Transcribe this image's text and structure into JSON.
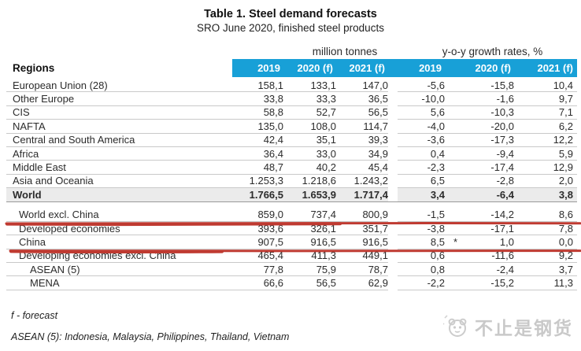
{
  "title": "Table 1. Steel demand forecasts",
  "subtitle": "SRO June 2020, finished steel products",
  "table": {
    "regions_header": "Regions",
    "group_headers": {
      "tonnes": "million tonnes",
      "growth": "y-o-y growth rates, %"
    },
    "year_headers": [
      "2019",
      "2020 (f)",
      "2021 (f)",
      "2019",
      "2020 (f)",
      "2021 (f)"
    ],
    "rows": [
      {
        "region": "European Union (28)",
        "indent": 0,
        "bold": false,
        "star": false,
        "underline": false,
        "break_after": false,
        "tonnes": [
          "158,1",
          "133,1",
          "147,0"
        ],
        "growth": [
          "-5,6",
          "-15,8",
          "10,4"
        ]
      },
      {
        "region": "Other Europe",
        "indent": 0,
        "bold": false,
        "star": false,
        "underline": false,
        "break_after": false,
        "tonnes": [
          "33,8",
          "33,3",
          "36,5"
        ],
        "growth": [
          "-10,0",
          "-1,6",
          "9,7"
        ]
      },
      {
        "region": "CIS",
        "indent": 0,
        "bold": false,
        "star": false,
        "underline": false,
        "break_after": false,
        "tonnes": [
          "58,8",
          "52,7",
          "56,5"
        ],
        "growth": [
          "5,6",
          "-10,3",
          "7,1"
        ]
      },
      {
        "region": "NAFTA",
        "indent": 0,
        "bold": false,
        "star": false,
        "underline": false,
        "break_after": false,
        "tonnes": [
          "135,0",
          "108,0",
          "114,7"
        ],
        "growth": [
          "-4,0",
          "-20,0",
          "6,2"
        ]
      },
      {
        "region": "Central and South America",
        "indent": 0,
        "bold": false,
        "star": false,
        "underline": false,
        "break_after": false,
        "tonnes": [
          "42,4",
          "35,1",
          "39,3"
        ],
        "growth": [
          "-3,6",
          "-17,3",
          "12,2"
        ]
      },
      {
        "region": "Africa",
        "indent": 0,
        "bold": false,
        "star": false,
        "underline": false,
        "break_after": false,
        "tonnes": [
          "36,4",
          "33,0",
          "34,9"
        ],
        "growth": [
          "0,4",
          "-9,4",
          "5,9"
        ]
      },
      {
        "region": "Middle East",
        "indent": 0,
        "bold": false,
        "star": false,
        "underline": false,
        "break_after": false,
        "tonnes": [
          "48,7",
          "40,2",
          "45,4"
        ],
        "growth": [
          "-2,3",
          "-17,4",
          "12,9"
        ]
      },
      {
        "region": "Asia and Oceania",
        "indent": 0,
        "bold": false,
        "star": false,
        "underline": false,
        "break_after": false,
        "tonnes": [
          "1.253,3",
          "1.218,6",
          "1.243,2"
        ],
        "growth": [
          "6,5",
          "-2,8",
          "2,0"
        ]
      },
      {
        "region": "World",
        "indent": 0,
        "bold": true,
        "star": true,
        "underline": false,
        "break_after": true,
        "tonnes": [
          "1.766,5",
          "1.653,9",
          "1.717,4"
        ],
        "growth": [
          "3,4",
          "-6,4",
          "3,8"
        ]
      },
      {
        "region": "World excl. China",
        "indent": 1,
        "bold": false,
        "star": false,
        "underline": true,
        "break_after": false,
        "tonnes": [
          "859,0",
          "737,4",
          "800,9"
        ],
        "growth": [
          "-1,5",
          "-14,2",
          "8,6"
        ]
      },
      {
        "region": "Developed economies",
        "indent": 1,
        "bold": false,
        "star": false,
        "underline": false,
        "break_after": false,
        "tonnes": [
          "393,6",
          "326,1",
          "351,7"
        ],
        "growth": [
          "-3,8",
          "-17,1",
          "7,8"
        ]
      },
      {
        "region": "China",
        "indent": 1,
        "bold": false,
        "star": true,
        "underline": true,
        "break_after": false,
        "tonnes": [
          "907,5",
          "916,5",
          "916,5"
        ],
        "growth": [
          "8,5",
          "1,0",
          "0,0"
        ]
      },
      {
        "region": "Developing economies excl. China",
        "indent": 1,
        "bold": false,
        "star": false,
        "underline": false,
        "break_after": false,
        "tonnes": [
          "465,4",
          "411,3",
          "449,1"
        ],
        "growth": [
          "0,6",
          "-11,6",
          "9,2"
        ]
      },
      {
        "region": "ASEAN (5)",
        "indent": 2,
        "bold": false,
        "star": false,
        "underline": false,
        "break_after": false,
        "tonnes": [
          "77,8",
          "75,9",
          "78,7"
        ],
        "growth": [
          "0,8",
          "-2,4",
          "3,7"
        ]
      },
      {
        "region": "MENA",
        "indent": 2,
        "bold": false,
        "star": false,
        "underline": false,
        "break_after": false,
        "tonnes": [
          "66,6",
          "56,5",
          "62,9"
        ],
        "growth": [
          "-2,2",
          "-15,2",
          "11,3"
        ]
      }
    ]
  },
  "annotations": {
    "underlined_regions": [
      "World excl. China",
      "China"
    ],
    "marker": "*"
  },
  "footnotes": [
    "f - forecast",
    "ASEAN (5): Indonesia, Malaysia, Philippines, Thailand, Vietnam"
  ],
  "watermark": "不止是钢货",
  "colors": {
    "header_blue": "#18a0d7",
    "world_row_bg": "#ebebeb",
    "annotation_red": "#bf3a31",
    "row_border": "#c9c9c9"
  }
}
